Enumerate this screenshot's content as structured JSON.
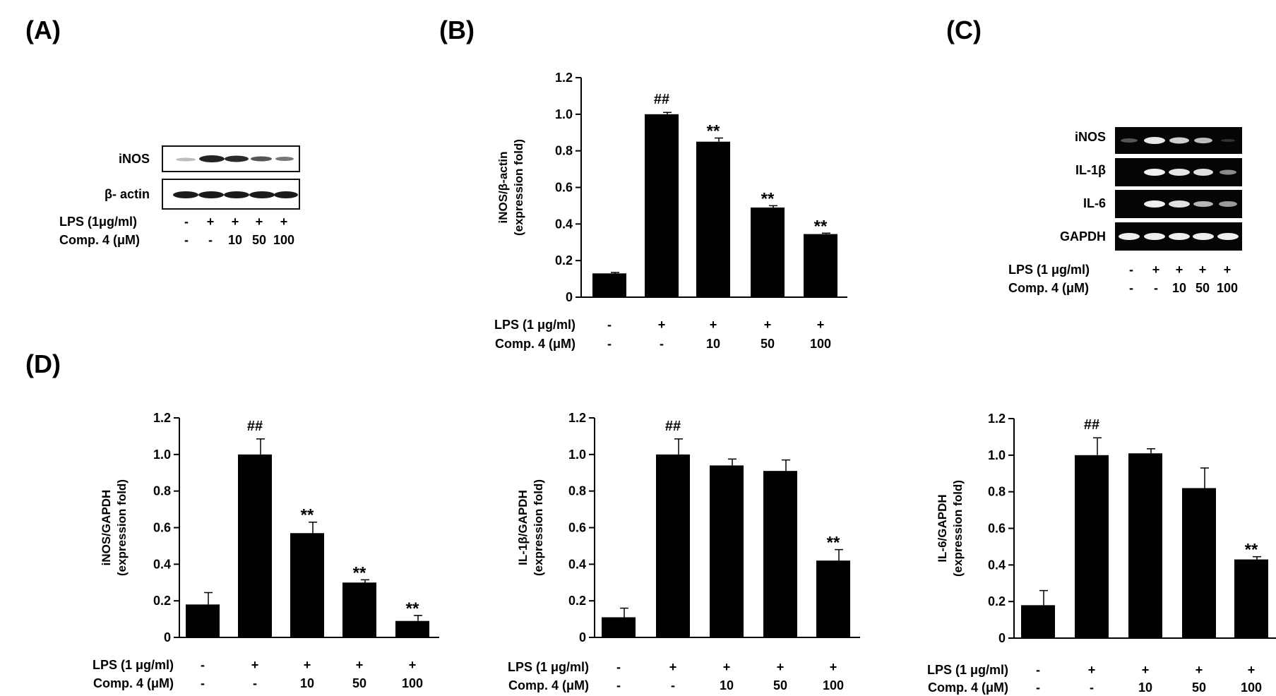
{
  "panels": {
    "A": "(A)",
    "B": "(B)",
    "C": "(C)",
    "D": "(D)"
  },
  "western_blot": {
    "bands": [
      "iNOS",
      "β- actin"
    ],
    "lps_label": "LPS (1μg/ml)",
    "comp_label": "Comp. 4 (μM)",
    "lps": [
      "-",
      "+",
      "+",
      "+",
      "+"
    ],
    "comp": [
      "-",
      "-",
      "10",
      "50",
      "100"
    ]
  },
  "rt_pcr": {
    "bands": [
      "iNOS",
      "IL-1β",
      "IL-6",
      "GAPDH"
    ],
    "lps_label": "LPS (1 μg/ml)",
    "comp_label": "Comp. 4 (μM)",
    "lps": [
      "-",
      "+",
      "+",
      "+",
      "+"
    ],
    "comp": [
      "-",
      "-",
      "10",
      "50",
      "100"
    ]
  },
  "chart_data": [
    {
      "id": "B",
      "type": "bar",
      "ylabel": [
        "iNOS/β-actin",
        "(expression fold)"
      ],
      "yticks": [
        "0",
        "0.2",
        "0.4",
        "0.6",
        "0.8",
        "1.0",
        "1.2"
      ],
      "ylim": [
        0,
        1.2
      ],
      "values": [
        0.13,
        1.0,
        0.85,
        0.49,
        0.345
      ],
      "errors": [
        0.005,
        0.01,
        0.02,
        0.01,
        0.005
      ],
      "annotations": [
        "",
        "##",
        "**",
        "**",
        "**"
      ],
      "lps_label": "LPS (1 μg/ml)",
      "comp_label": "Comp. 4 (μM)",
      "lps": [
        "-",
        "+",
        "+",
        "+",
        "+"
      ],
      "comp": [
        "-",
        "-",
        "10",
        "50",
        "100"
      ]
    },
    {
      "id": "D1",
      "type": "bar",
      "ylabel": [
        "iNOS/GAPDH",
        "(expression fold)"
      ],
      "yticks": [
        "0",
        "0.2",
        "0.4",
        "0.6",
        "0.8",
        "1.0",
        "1.2"
      ],
      "ylim": [
        0,
        1.2
      ],
      "values": [
        0.18,
        1.0,
        0.57,
        0.3,
        0.09
      ],
      "errors": [
        0.065,
        0.085,
        0.06,
        0.015,
        0.03
      ],
      "annotations": [
        "",
        "##",
        "**",
        "**",
        "**"
      ],
      "lps_label": "LPS (1 μg/ml)",
      "comp_label": "Comp. 4 (μM)",
      "lps": [
        "-",
        "+",
        "+",
        "+",
        "+"
      ],
      "comp": [
        "-",
        "-",
        "10",
        "50",
        "100"
      ]
    },
    {
      "id": "D2",
      "type": "bar",
      "ylabel": [
        "IL-1β/GAPDH",
        "(expression fold)"
      ],
      "yticks": [
        "0",
        "0.2",
        "0.4",
        "0.6",
        "0.8",
        "1.0",
        "1.2"
      ],
      "ylim": [
        0,
        1.2
      ],
      "values": [
        0.11,
        1.0,
        0.94,
        0.91,
        0.42
      ],
      "errors": [
        0.05,
        0.085,
        0.035,
        0.06,
        0.06
      ],
      "annotations": [
        "",
        "##",
        "",
        "",
        "**"
      ],
      "lps_label": "LPS (1 μg/ml)",
      "comp_label": "Comp. 4 (μM)",
      "lps": [
        "-",
        "+",
        "+",
        "+",
        "+"
      ],
      "comp": [
        "-",
        "-",
        "10",
        "50",
        "100"
      ]
    },
    {
      "id": "D3",
      "type": "bar",
      "ylabel": [
        "IL-6/GAPDH",
        "(expression fold)"
      ],
      "yticks": [
        "0",
        "0.2",
        "0.4",
        "0.6",
        "0.8",
        "1.0",
        "1.2"
      ],
      "ylim": [
        0,
        1.2
      ],
      "values": [
        0.18,
        1.0,
        1.01,
        0.82,
        0.43
      ],
      "errors": [
        0.08,
        0.095,
        0.025,
        0.11,
        0.015
      ],
      "annotations": [
        "",
        "##",
        "",
        "",
        "**"
      ],
      "lps_label": "LPS (1 μg/ml)",
      "comp_label": "Comp. 4 (μM)",
      "lps": [
        "-",
        "+",
        "+",
        "+",
        "+"
      ],
      "comp": [
        "-",
        "-",
        "10",
        "50",
        "100"
      ]
    }
  ]
}
